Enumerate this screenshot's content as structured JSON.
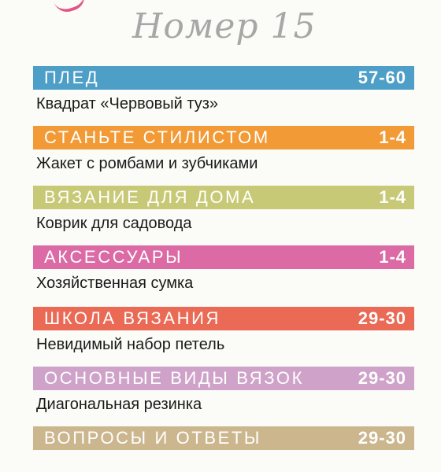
{
  "header": {
    "issue_title": "Номер 15"
  },
  "sections": [
    {
      "title": "ПЛЕД",
      "pages": "57-60",
      "item": "Квадрат «Червовый туз»",
      "color": "#4d9fc8"
    },
    {
      "title": "СТАНЬТЕ СТИЛИСТОМ",
      "pages": "1-4",
      "item": "Жакет с ромбами и зубчиками",
      "color": "#f29a35"
    },
    {
      "title": "ВЯЗАНИЕ ДЛЯ ДОМА",
      "pages": "1-4",
      "item": "Коврик для садовода",
      "color": "#c8c977"
    },
    {
      "title": "АКСЕССУАРЫ",
      "pages": "1-4",
      "item": "Хозяйственная сумка",
      "color": "#db6aa5"
    },
    {
      "title": "ШКОЛА ВЯЗАНИЯ",
      "pages": "29-30",
      "item": "Невидимый набор петель",
      "color": "#ea6a55"
    },
    {
      "title": "ОСНОВНЫЕ ВИДЫ ВЯЗОК",
      "pages": "29-30",
      "item": "Диагональная резинка",
      "color": "#cfa3c9"
    },
    {
      "title": "ВОПРОСЫ И ОТВЕТЫ",
      "pages": "29-30",
      "item": "",
      "color": "#cbb68e"
    }
  ]
}
